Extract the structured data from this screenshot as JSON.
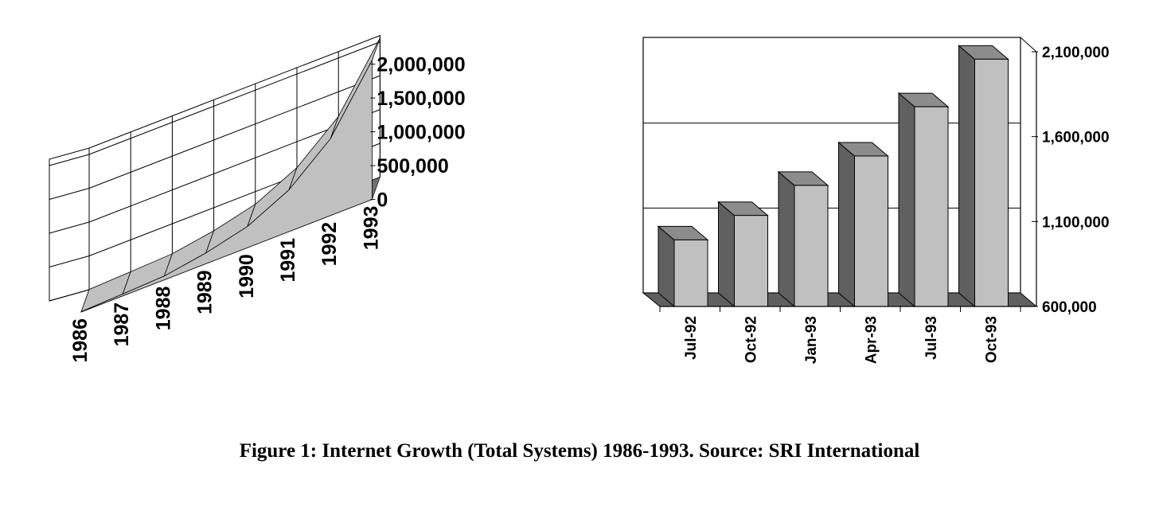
{
  "chart_data": [
    {
      "type": "area",
      "three_d": true,
      "title": "",
      "xlabel": "",
      "ylabel": "",
      "categories": [
        "1986",
        "1987",
        "1988",
        "1989",
        "1990",
        "1991",
        "1992",
        "1993"
      ],
      "values": [
        5000,
        28000,
        56000,
        159000,
        313000,
        617000,
        1136000,
        2056000
      ],
      "ylim": [
        0,
        2000000
      ],
      "y_ticks": [
        "2,000,000",
        "1,500,000",
        "1,000,000",
        "500,000",
        "0"
      ],
      "grid": true,
      "colors": {
        "surface": "#c0c0c0",
        "floor": "#6e6e6e",
        "grid": "#000000"
      }
    },
    {
      "type": "bar",
      "three_d": true,
      "title": "",
      "xlabel": "",
      "ylabel": "",
      "categories": [
        "Jul-92",
        "Oct-92",
        "Jan-93",
        "Apr-93",
        "Jul-93",
        "Oct-93"
      ],
      "values": [
        992000,
        1136000,
        1313000,
        1486000,
        1776000,
        2056000
      ],
      "ylim": [
        600000,
        2100000
      ],
      "y_ticks": [
        "2,100,000",
        "1,600,000",
        "1,100,000",
        "600,000"
      ],
      "grid": true,
      "colors": {
        "bar_front": "#c0c0c0",
        "bar_side": "#606060",
        "bar_top": "#8c8c8c"
      }
    }
  ],
  "caption": "Figure 1: Internet Growth (Total Systems) 1986-1993. Source: SRI International"
}
